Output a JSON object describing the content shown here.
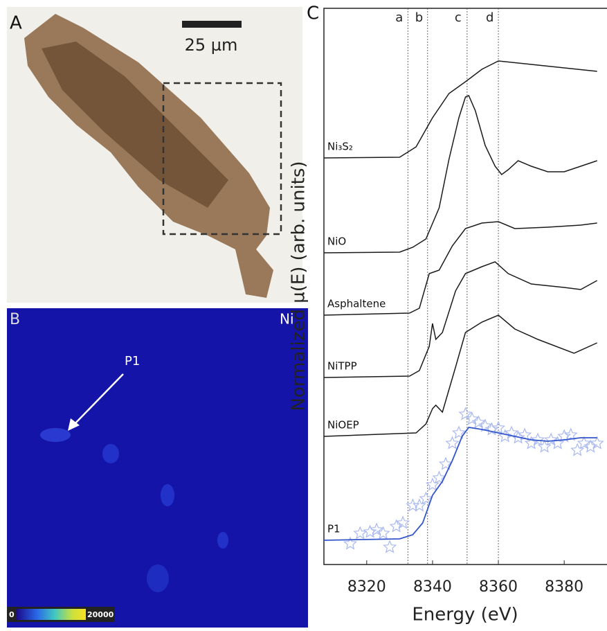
{
  "panels": {
    "A": {
      "label": "A",
      "scale_bar": "25 µm"
    },
    "B": {
      "label": "B",
      "element": "Ni",
      "annotation": "P1",
      "colorbar": {
        "min": 0,
        "max": 20000
      }
    }
  },
  "chart_data": {
    "type": "line",
    "panel_label": "C",
    "xlabel": "Energy (eV)",
    "ylabel": "Normalized µ(E) (arb. units)",
    "xlim": [
      8307,
      8393
    ],
    "xticks": [
      8320,
      8340,
      8360,
      8380
    ],
    "ylim": [
      0,
      803
    ],
    "reference_lines": {
      "labels": [
        "a",
        "b",
        "c",
        "d"
      ],
      "x": [
        8332.5,
        8338.5,
        8350.5,
        8360
      ]
    },
    "series": [
      {
        "name": "Ni₃S₂",
        "color": "#1a1a1a",
        "x": [
          8307,
          8330,
          8333,
          8335,
          8340,
          8345,
          8350,
          8355,
          8360,
          8370,
          8380,
          8390
        ],
        "values": [
          587,
          588,
          597,
          603,
          645,
          680,
          697,
          715,
          727,
          722,
          717,
          712
        ]
      },
      {
        "name": "NiO",
        "color": "#1a1a1a",
        "x": [
          8307,
          8330,
          8334,
          8338,
          8342,
          8345,
          8348,
          8350,
          8351,
          8353,
          8356,
          8359,
          8361,
          8363,
          8366,
          8370,
          8375,
          8380,
          8385,
          8390
        ],
        "values": [
          450,
          451,
          458,
          470,
          515,
          585,
          645,
          675,
          677,
          655,
          605,
          575,
          563,
          570,
          583,
          575,
          567,
          567,
          575,
          583
        ]
      },
      {
        "name": "Asphaltene",
        "color": "#1a1a1a",
        "x": [
          8307,
          8333,
          8336,
          8339,
          8342,
          8346,
          8350,
          8355,
          8360,
          8365,
          8375,
          8385,
          8390
        ],
        "values": [
          360,
          363,
          370,
          420,
          425,
          460,
          485,
          493,
          495,
          485,
          487,
          490,
          493
        ]
      },
      {
        "name": "NiTPP",
        "color": "#1a1a1a",
        "x": [
          8307,
          8333,
          8336,
          8339,
          8340,
          8341,
          8343,
          8347,
          8350,
          8355,
          8359,
          8363,
          8370,
          8380,
          8385,
          8390
        ],
        "values": [
          270,
          272,
          280,
          315,
          348,
          325,
          335,
          395,
          420,
          430,
          437,
          420,
          405,
          400,
          397,
          410
        ]
      },
      {
        "name": "NiOEP",
        "color": "#1a1a1a",
        "x": [
          8307,
          8335,
          8338,
          8340,
          8341,
          8343,
          8347,
          8350,
          8355,
          8360,
          8365,
          8372,
          8383,
          8390
        ],
        "values": [
          185,
          190,
          203,
          225,
          230,
          220,
          285,
          335,
          350,
          360,
          340,
          325,
          305,
          320
        ]
      },
      {
        "name": "P1",
        "color": "#3355cc",
        "x": [
          8307,
          8330,
          8334,
          8337,
          8340,
          8343,
          8346,
          8349,
          8351,
          8355,
          8360,
          8365,
          8370,
          8375,
          8380,
          8385,
          8390
        ],
        "values": [
          35,
          37,
          43,
          60,
          100,
          120,
          150,
          185,
          198,
          195,
          190,
          185,
          180,
          178,
          180,
          183,
          183
        ],
        "points": {
          "color": "#a9b8f0",
          "x": [
            8315,
            8318,
            8321,
            8323,
            8325,
            8327,
            8329,
            8331,
            8334,
            8336,
            8338,
            8340,
            8342,
            8344,
            8346,
            8348,
            8350,
            8352,
            8354,
            8356,
            8358,
            8360,
            8362,
            8364,
            8366,
            8368,
            8370,
            8372,
            8374,
            8376,
            8378,
            8380,
            8382,
            8384,
            8386,
            8388,
            8390
          ],
          "y": [
            30,
            45,
            47,
            50,
            45,
            25,
            55,
            60,
            85,
            85,
            95,
            115,
            125,
            145,
            175,
            190,
            217,
            210,
            205,
            200,
            195,
            197,
            185,
            190,
            183,
            187,
            175,
            180,
            170,
            180,
            175,
            185,
            187,
            165,
            175,
            170,
            175
          ]
        }
      }
    ]
  }
}
